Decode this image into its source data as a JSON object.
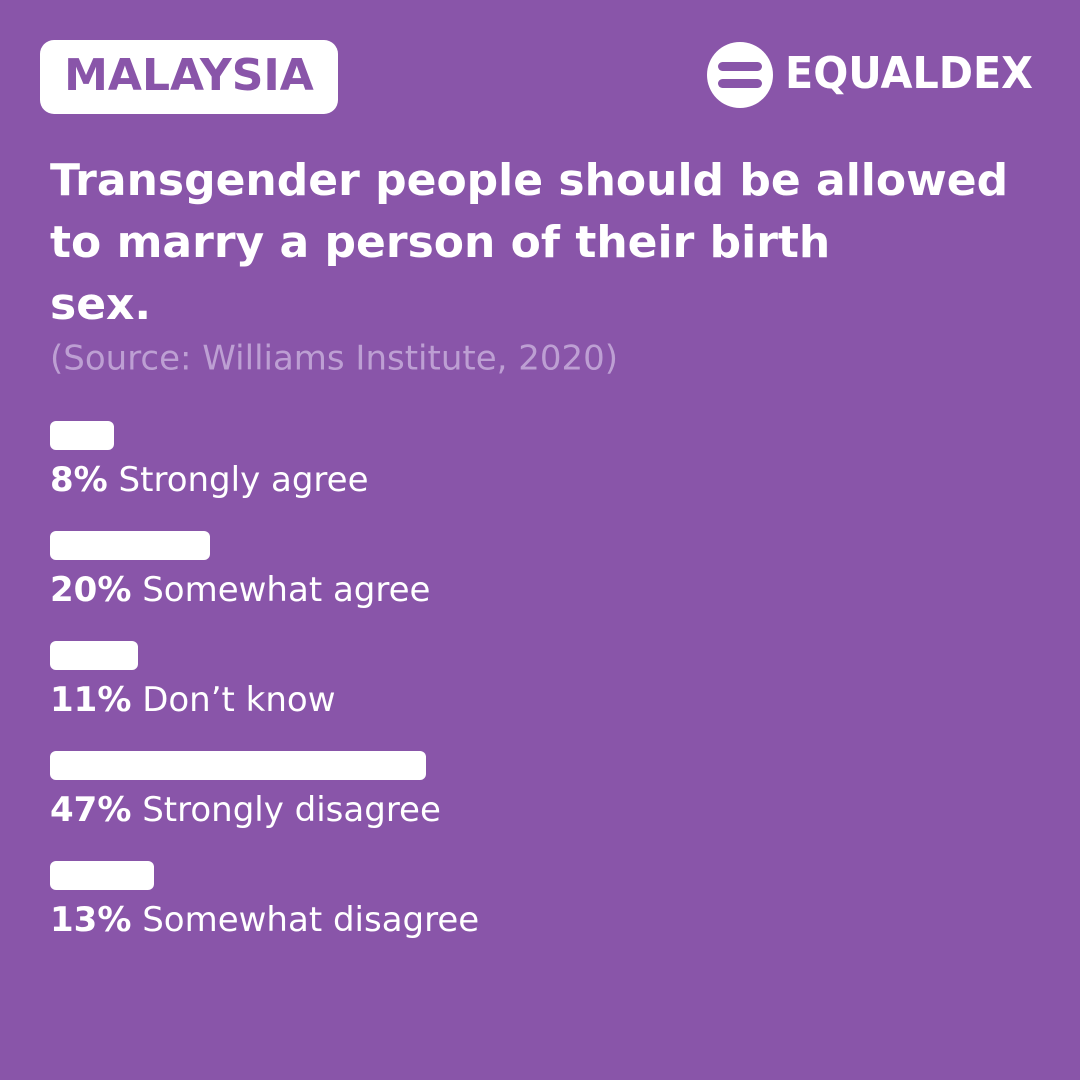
{
  "chart_data": {
    "type": "bar",
    "badge": "MALAYSIA",
    "brand": "EQUALDEX",
    "title": [
      "Transgender people should be allowed",
      "to marry a person of their birth",
      "sex."
    ],
    "subtitle": "(Source: Williams Institute, 2020)",
    "categories": [
      "Strongly agree",
      "Somewhat agree",
      "Don’t know",
      "Strongly disagree",
      "Somewhat disagree"
    ],
    "values": [
      8,
      20,
      11,
      47,
      13
    ],
    "value_labels": [
      "8%",
      "20%",
      "11%",
      "47%",
      "13%"
    ],
    "color": "#ffffff"
  }
}
